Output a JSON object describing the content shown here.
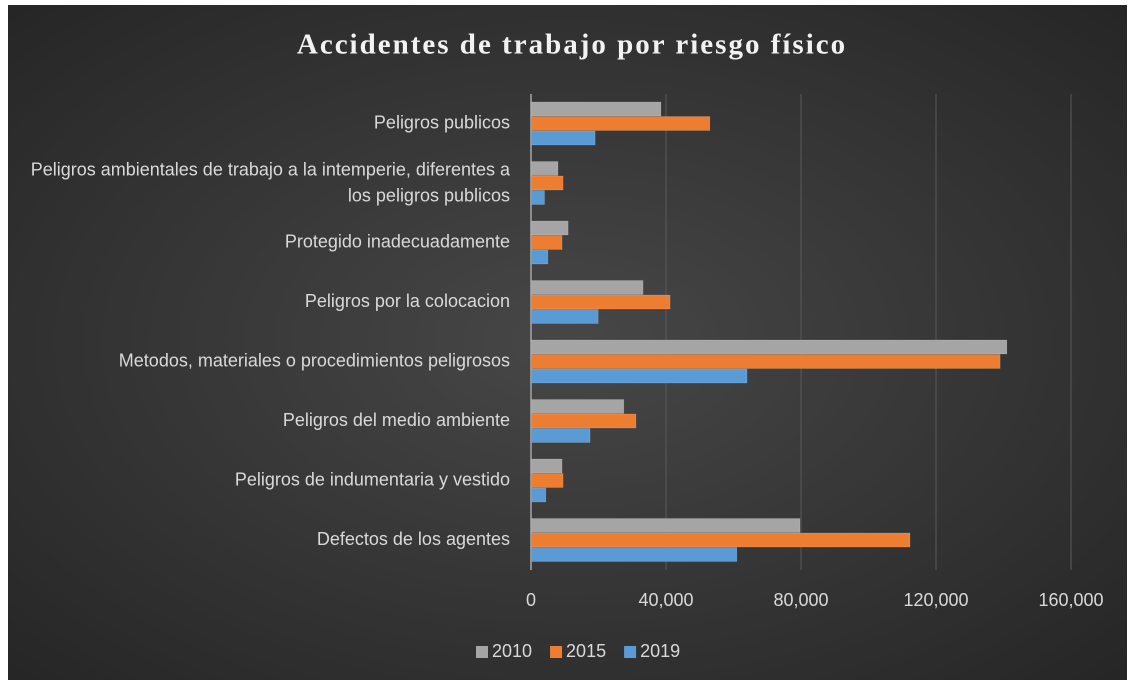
{
  "chart_data": {
    "type": "barh",
    "title": "Accidentes de trabajo por riesgo físico",
    "categories": [
      "Peligros publicos",
      "Peligros ambientales de trabajo a la intemperie, diferentes a los peligros publicos",
      "Protegido inadecuadamente",
      "Peligros por la colocacion",
      "Metodos, materiales o procedimientos peligrosos",
      "Peligros del medio ambiente",
      "Peligros de indumentaria y vestido",
      "Defectos de los agentes"
    ],
    "series": [
      {
        "name": "2010",
        "color": "#a5a5a5",
        "values": [
          38500,
          8000,
          11000,
          33200,
          141000,
          27500,
          9200,
          79700
        ]
      },
      {
        "name": "2015",
        "color": "#ed7d31",
        "values": [
          53000,
          9500,
          9200,
          41200,
          139000,
          31100,
          9500,
          112300
        ]
      },
      {
        "name": "2019",
        "color": "#5b9bd5",
        "values": [
          19000,
          4000,
          5000,
          19900,
          64000,
          17500,
          4400,
          61000
        ]
      }
    ],
    "xlim": [
      0,
      160000
    ],
    "xticks": [
      0,
      {
        "value": 40000,
        "label": "40,000"
      },
      {
        "value": 80000,
        "label": "80,000"
      },
      {
        "value": 120000,
        "label": "120,000"
      },
      {
        "value": 160000,
        "label": "160,000"
      }
    ],
    "grid": true,
    "legend": "bottom"
  }
}
